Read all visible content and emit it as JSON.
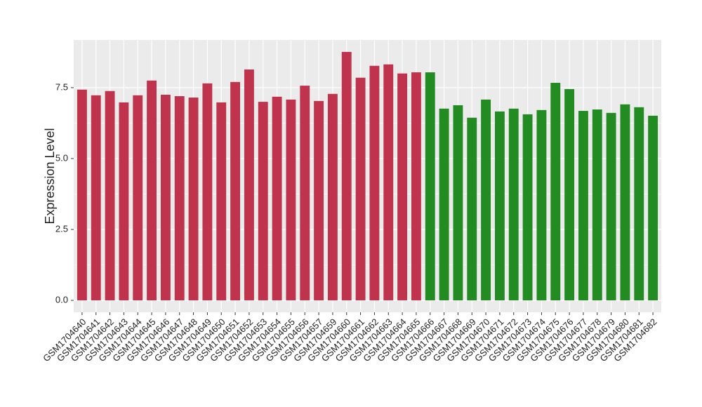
{
  "chart_data": {
    "type": "bar",
    "y_label": "Expression Level",
    "categories": [
      "GSM1704640",
      "GSM1704641",
      "GSM1704642",
      "GSM1704643",
      "GSM1704644",
      "GSM1704645",
      "GSM1704646",
      "GSM1704647",
      "GSM1704648",
      "GSM1704649",
      "GSM1704650",
      "GSM1704651",
      "GSM1704652",
      "GSM1704653",
      "GSM1704654",
      "GSM1704655",
      "GSM1704656",
      "GSM1704657",
      "GSM1704659",
      "GSM1704660",
      "GSM1704661",
      "GSM1704662",
      "GSM1704663",
      "GSM1704664",
      "GSM1704665",
      "GSM1704666",
      "GSM1704667",
      "GSM1704668",
      "GSM1704669",
      "GSM1704670",
      "GSM1704671",
      "GSM1704672",
      "GSM1704673",
      "GSM1704674",
      "GSM1704675",
      "GSM1704676",
      "GSM1704677",
      "GSM1704678",
      "GSM1704679",
      "GSM1704680",
      "GSM1704681",
      "GSM1704682"
    ],
    "values": [
      7.43,
      7.23,
      7.38,
      6.98,
      7.23,
      7.75,
      7.25,
      7.2,
      7.15,
      7.65,
      6.98,
      7.7,
      8.14,
      7.0,
      7.18,
      7.08,
      7.57,
      7.03,
      7.28,
      8.76,
      7.85,
      8.27,
      8.32,
      8.0,
      8.04,
      8.04,
      6.76,
      6.88,
      6.44,
      7.08,
      6.66,
      6.76,
      6.56,
      6.71,
      7.67,
      7.45,
      6.68,
      6.73,
      6.61,
      6.91,
      6.81,
      6.51
    ],
    "colors": [
      "#c0334d",
      "#c0334d",
      "#c0334d",
      "#c0334d",
      "#c0334d",
      "#c0334d",
      "#c0334d",
      "#c0334d",
      "#c0334d",
      "#c0334d",
      "#c0334d",
      "#c0334d",
      "#c0334d",
      "#c0334d",
      "#c0334d",
      "#c0334d",
      "#c0334d",
      "#c0334d",
      "#c0334d",
      "#c0334d",
      "#c0334d",
      "#c0334d",
      "#c0334d",
      "#c0334d",
      "#c0334d",
      "#228b22",
      "#228b22",
      "#228b22",
      "#228b22",
      "#228b22",
      "#228b22",
      "#228b22",
      "#228b22",
      "#228b22",
      "#228b22",
      "#228b22",
      "#228b22",
      "#228b22",
      "#228b22",
      "#228b22",
      "#228b22",
      "#228b22"
    ],
    "ylim": [
      -0.42,
      9.18
    ],
    "yticks": [
      {
        "value": 0,
        "label": "0.0"
      },
      2.5,
      {
        "value": 5,
        "label": "5.0"
      },
      7.5
    ],
    "grid": true
  }
}
